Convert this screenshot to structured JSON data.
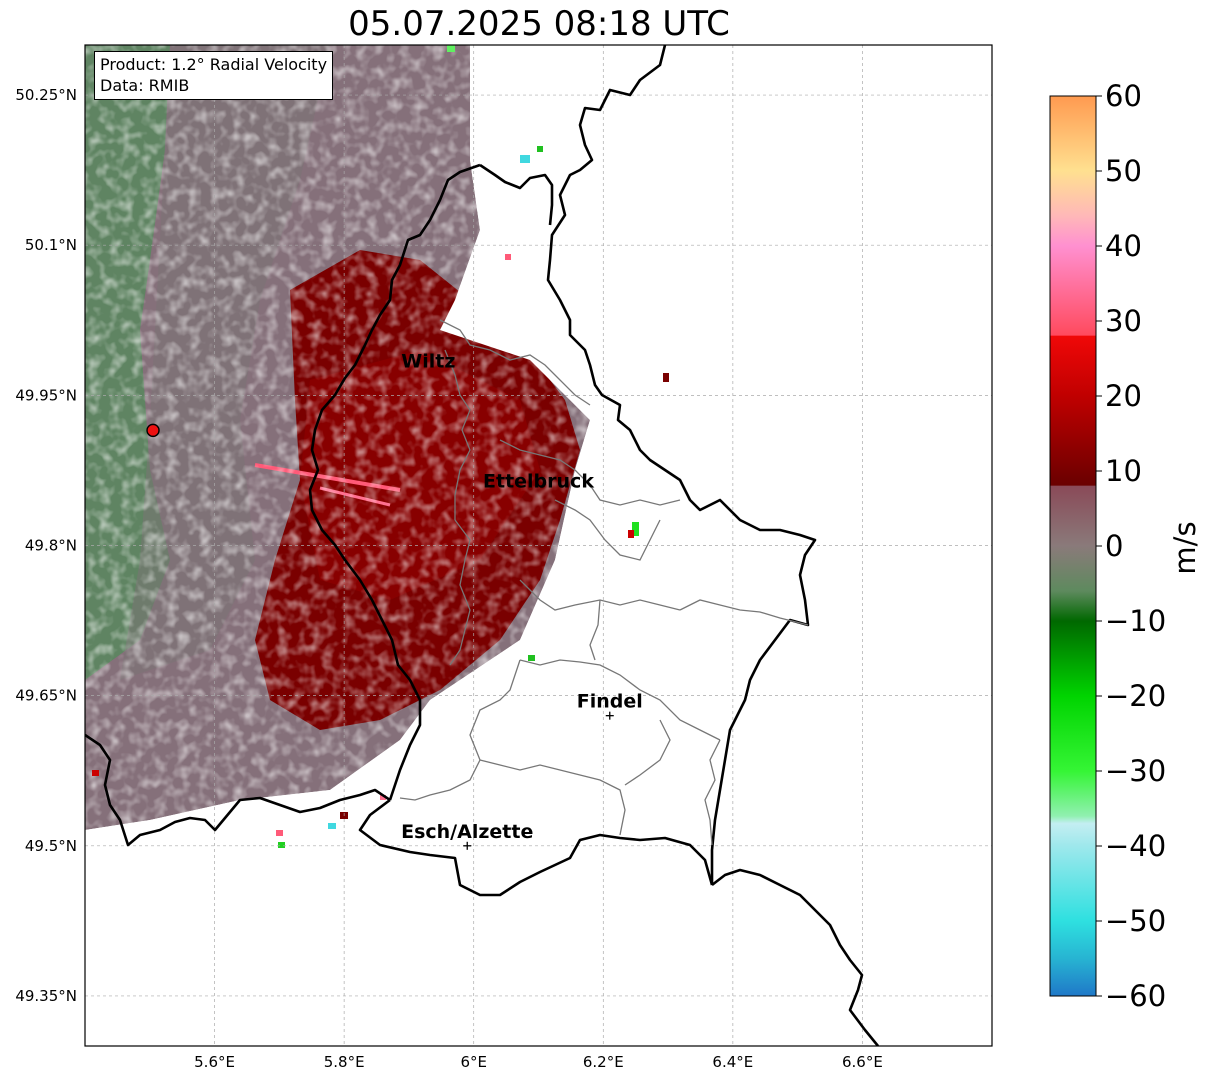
{
  "title": "05.07.2025 08:18 UTC",
  "info": {
    "product": "Product: 1.2° Radial Velocity",
    "source": "Data: RMIB"
  },
  "axes": {
    "lon_ticks": [
      "5.6°E",
      "5.8°E",
      "6°E",
      "6.2°E",
      "6.4°E",
      "6.6°E"
    ],
    "lat_ticks": [
      "50.25°N",
      "50.1°N",
      "49.95°N",
      "49.8°N",
      "49.65°N",
      "49.5°N",
      "49.35°N"
    ],
    "lon_range": [
      5.4,
      6.8
    ],
    "lat_range": [
      49.3,
      50.3
    ]
  },
  "cities": [
    {
      "name": "Wiltz",
      "lon": 5.93,
      "lat": 49.97,
      "marker": false
    },
    {
      "name": "Ettelbruck",
      "lon": 6.1,
      "lat": 49.85,
      "marker": false
    },
    {
      "name": "Findel",
      "lon": 6.21,
      "lat": 49.63,
      "marker": true
    },
    {
      "name": "Esch/Alzette",
      "lon": 5.99,
      "lat": 49.5,
      "marker": true
    }
  ],
  "radar": {
    "lon": 5.505,
    "lat": 49.915,
    "color": "#ee1111"
  },
  "colorbar": {
    "unit": "m/s",
    "min": -60,
    "max": 60,
    "tick_labels": [
      "60",
      "50",
      "40",
      "30",
      "20",
      "10",
      "0",
      "−10",
      "−20",
      "−30",
      "−40",
      "−50",
      "−60"
    ],
    "stops": [
      {
        "v": -60,
        "c": "#1f78c8"
      },
      {
        "v": -55,
        "c": "#27b4d2"
      },
      {
        "v": -50,
        "c": "#2ee0e0"
      },
      {
        "v": -40,
        "c": "#9ee8ec"
      },
      {
        "v": -37,
        "c": "#c4eef2"
      },
      {
        "v": -36,
        "c": "#90f0b0"
      },
      {
        "v": -30,
        "c": "#35f535"
      },
      {
        "v": -20,
        "c": "#00d400"
      },
      {
        "v": -10,
        "c": "#006800"
      },
      {
        "v": -6,
        "c": "#5e8a5e"
      },
      {
        "v": 0,
        "c": "#8a7a7a"
      },
      {
        "v": 8,
        "c": "#8a4a58"
      },
      {
        "v": 8.1,
        "c": "#6a0000"
      },
      {
        "v": 20,
        "c": "#c00000"
      },
      {
        "v": 28,
        "c": "#f00808"
      },
      {
        "v": 28.1,
        "c": "#ff4a5e"
      },
      {
        "v": 40,
        "c": "#ff90d0"
      },
      {
        "v": 44,
        "c": "#ffb8b8"
      },
      {
        "v": 50,
        "c": "#ffe090"
      },
      {
        "v": 60,
        "c": "#ff9a50"
      }
    ]
  }
}
